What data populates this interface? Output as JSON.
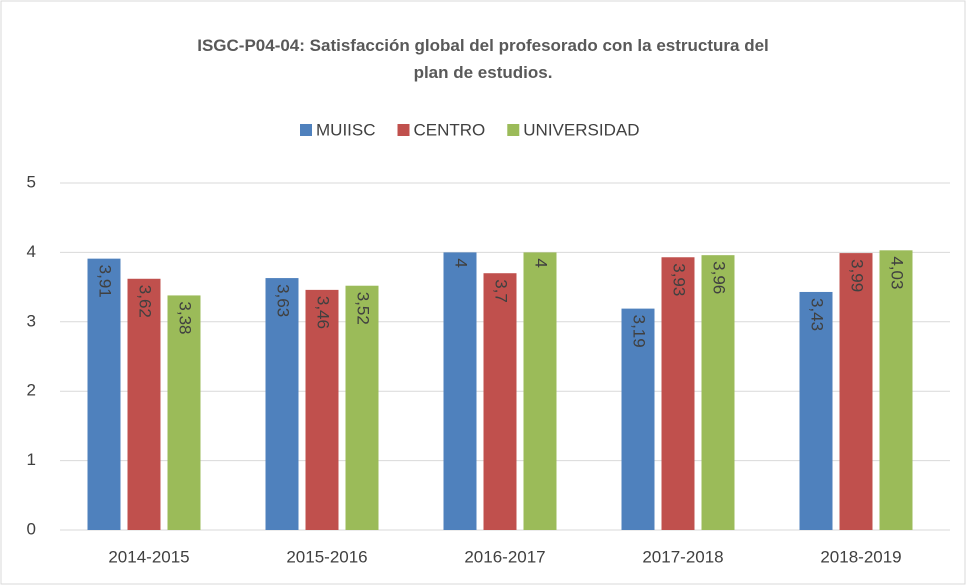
{
  "chart_data": {
    "type": "bar",
    "title": "ISGC-P04-04: Satisfacción global del profesorado con la estructura del plan de estudios.",
    "categories": [
      "2014-2015",
      "2015-2016",
      "2016-2017",
      "2017-2018",
      "2018-2019"
    ],
    "series": [
      {
        "name": "MUIISC",
        "color": "#4f81bd",
        "values": [
          3.91,
          3.63,
          4,
          3.19,
          3.43
        ],
        "value_labels": [
          "3,91",
          "3,63",
          "4",
          "3,19",
          "3,43"
        ]
      },
      {
        "name": "CENTRO",
        "color": "#c0504d",
        "values": [
          3.62,
          3.46,
          3.7,
          3.93,
          3.99
        ],
        "value_labels": [
          "3,62",
          "3,46",
          "3,7",
          "3,93",
          "3,99"
        ]
      },
      {
        "name": "UNIVERSIDAD",
        "color": "#9bbb59",
        "values": [
          3.38,
          3.52,
          4,
          3.96,
          4.03
        ],
        "value_labels": [
          "3,38",
          "3,52",
          "4",
          "3,96",
          "4,03"
        ]
      }
    ],
    "ylim": [
      0,
      5
    ],
    "yticks": [
      0,
      1,
      2,
      3,
      4,
      5
    ],
    "grid": true,
    "legend": "top"
  }
}
